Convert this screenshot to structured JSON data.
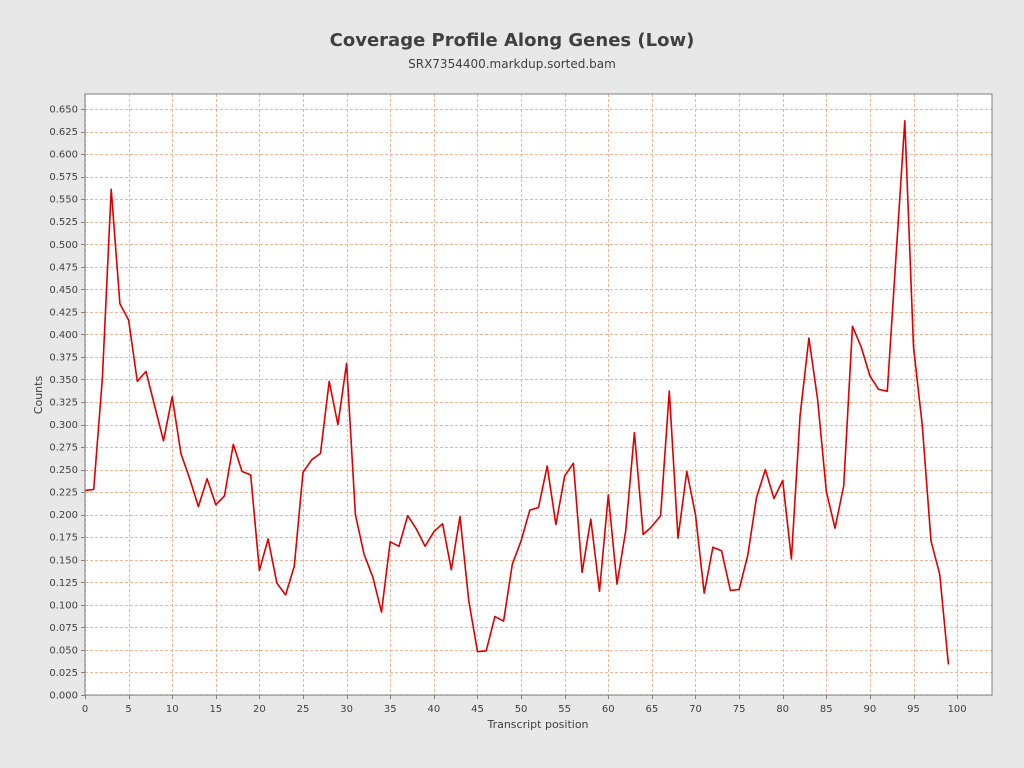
{
  "chart_data": {
    "type": "line",
    "title": "Coverage Profile Along Genes (Low)",
    "subtitle": "SRX7354400.markdup.sorted.bam",
    "xlabel": "Transcript position",
    "ylabel": "Counts",
    "xlim": [
      0,
      104
    ],
    "ylim": [
      0,
      0.6667
    ],
    "xticks": [
      0,
      5,
      10,
      15,
      20,
      25,
      30,
      35,
      40,
      45,
      50,
      55,
      60,
      65,
      70,
      75,
      80,
      85,
      90,
      95,
      100
    ],
    "yticks": [
      0.0,
      0.025,
      0.05,
      0.075,
      0.1,
      0.125,
      0.15,
      0.175,
      0.2,
      0.225,
      0.25,
      0.275,
      0.3,
      0.325,
      0.35,
      0.375,
      0.4,
      0.425,
      0.45,
      0.475,
      0.5,
      0.525,
      0.55,
      0.575,
      0.6,
      0.625,
      0.65
    ],
    "ytick_labels": [
      "0.000",
      "0.025",
      "0.050",
      "0.075",
      "0.100",
      "0.125",
      "0.150",
      "0.175",
      "0.200",
      "0.225",
      "0.250",
      "0.275",
      "0.300",
      "0.325",
      "0.350",
      "0.375",
      "0.400",
      "0.425",
      "0.450",
      "0.475",
      "0.500",
      "0.525",
      "0.550",
      "0.575",
      "0.600",
      "0.625",
      "0.650"
    ],
    "grid": true,
    "legend": "none",
    "series": [
      {
        "color": "#dd0000",
        "x": [
          0,
          1,
          2,
          3,
          4,
          5,
          6,
          7,
          8,
          9,
          10,
          11,
          12,
          13,
          14,
          15,
          16,
          17,
          18,
          19,
          20,
          21,
          22,
          23,
          24,
          25,
          26,
          27,
          28,
          29,
          30,
          31,
          32,
          33,
          34,
          35,
          36,
          37,
          38,
          39,
          40,
          41,
          42,
          43,
          44,
          45,
          46,
          47,
          48,
          49,
          50,
          51,
          52,
          53,
          54,
          55,
          56,
          57,
          58,
          59,
          60,
          61,
          62,
          63,
          64,
          65,
          66,
          67,
          68,
          69,
          70,
          71,
          72,
          73,
          74,
          75,
          76,
          77,
          78,
          79,
          80,
          81,
          82,
          83,
          84,
          85,
          86,
          87,
          88,
          89,
          90,
          91,
          92,
          93,
          94,
          95,
          96,
          97,
          98,
          99
        ],
        "y": [
          0.227,
          0.228,
          0.352,
          0.561,
          0.434,
          0.416,
          0.348,
          0.359,
          0.32,
          0.282,
          0.331,
          0.268,
          0.24,
          0.209,
          0.24,
          0.211,
          0.221,
          0.278,
          0.248,
          0.244,
          0.138,
          0.173,
          0.124,
          0.111,
          0.143,
          0.247,
          0.261,
          0.268,
          0.348,
          0.3,
          0.368,
          0.2,
          0.156,
          0.131,
          0.092,
          0.17,
          0.165,
          0.199,
          0.184,
          0.165,
          0.181,
          0.19,
          0.139,
          0.198,
          0.105,
          0.048,
          0.049,
          0.087,
          0.082,
          0.145,
          0.171,
          0.205,
          0.208,
          0.254,
          0.189,
          0.243,
          0.257,
          0.136,
          0.195,
          0.115,
          0.222,
          0.123,
          0.182,
          0.291,
          0.178,
          0.187,
          0.199,
          0.337,
          0.174,
          0.248,
          0.2,
          0.113,
          0.164,
          0.16,
          0.116,
          0.117,
          0.155,
          0.219,
          0.25,
          0.218,
          0.238,
          0.151,
          0.31,
          0.396,
          0.328,
          0.226,
          0.185,
          0.232,
          0.409,
          0.386,
          0.354,
          0.339,
          0.337,
          0.488,
          0.637,
          0.386,
          0.3,
          0.171,
          0.134,
          0.034
        ]
      }
    ]
  }
}
